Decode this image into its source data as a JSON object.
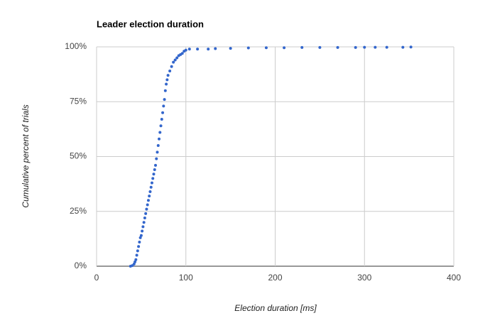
{
  "chart_data": {
    "type": "scatter",
    "title": "Leader election duration",
    "x_label": "Election duration [ms]",
    "y_label": "Cumulative percent of trials",
    "xlim": [
      0,
      400
    ],
    "xticks": [
      0,
      100,
      200,
      300,
      400
    ],
    "ylim": [
      0,
      100
    ],
    "yticks": [
      {
        "value": 0,
        "label": "0%"
      },
      {
        "value": 25,
        "label": "25%"
      },
      {
        "value": 50,
        "label": "50%"
      },
      {
        "value": 75,
        "label": "75%"
      },
      {
        "value": 100,
        "label": "100%"
      }
    ],
    "grid": true,
    "color": "#3366cc",
    "x": [
      38,
      40,
      42,
      43,
      44,
      45,
      46,
      47,
      48,
      49,
      50,
      51,
      52,
      53,
      54,
      55,
      56,
      57,
      58,
      59,
      60,
      61,
      62,
      63,
      64,
      65,
      66,
      67,
      68,
      69,
      70,
      71,
      72,
      73,
      74,
      75,
      76,
      77,
      78,
      79,
      80,
      82,
      84,
      86,
      88,
      90,
      92,
      94,
      96,
      98,
      100,
      104,
      113,
      125,
      133,
      150,
      170,
      190,
      210,
      230,
      250,
      270,
      290,
      300,
      312,
      325,
      343,
      352
    ],
    "values": [
      0,
      0.3,
      1,
      2,
      3,
      5,
      7,
      9,
      11,
      13,
      14,
      16,
      18,
      20,
      22,
      24,
      26,
      28,
      30,
      32,
      34,
      36,
      38,
      40,
      42,
      44,
      46,
      49,
      52,
      55,
      58,
      61,
      64,
      67,
      70,
      73,
      76,
      80,
      83,
      85,
      87,
      89,
      91,
      93,
      94,
      95,
      96,
      96.5,
      97,
      98,
      98.5,
      99,
      99,
      99,
      99.2,
      99.3,
      99.5,
      99.6,
      99.6,
      99.7,
      99.7,
      99.7,
      99.7,
      99.8,
      99.8,
      99.8,
      99.8,
      99.9
    ]
  }
}
